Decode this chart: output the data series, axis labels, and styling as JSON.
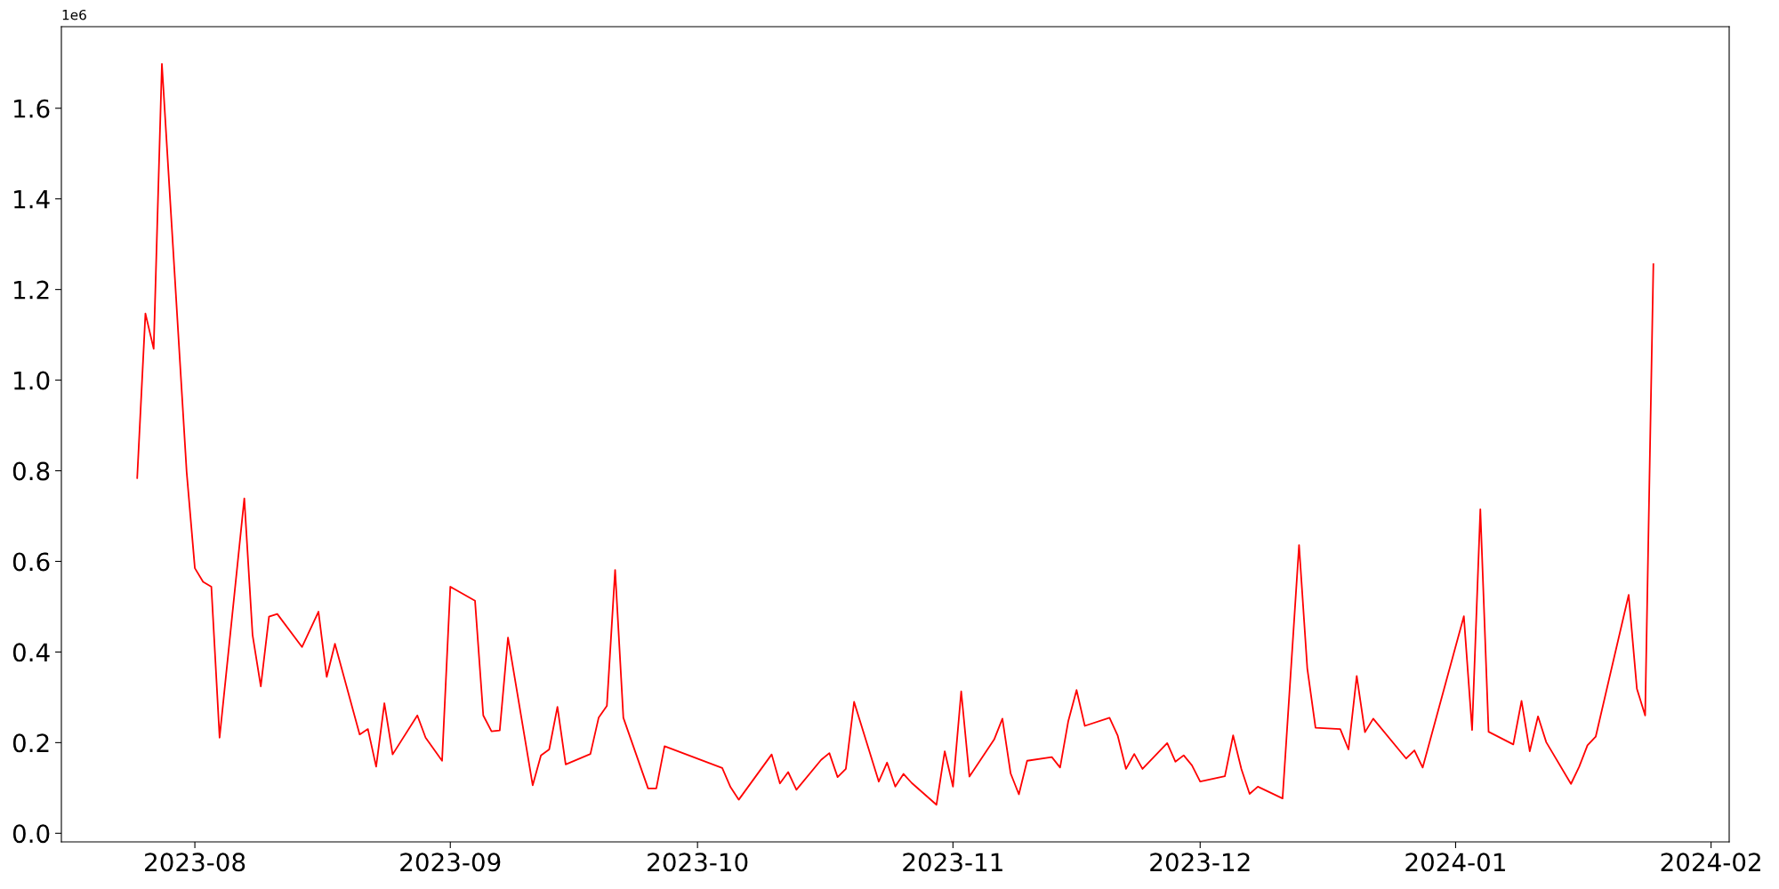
{
  "chart_data": {
    "type": "line",
    "x": [
      "2023-07-25",
      "2023-07-26",
      "2023-07-27",
      "2023-07-28",
      "2023-07-31",
      "2023-08-01",
      "2023-08-02",
      "2023-08-03",
      "2023-08-04",
      "2023-08-07",
      "2023-08-08",
      "2023-08-09",
      "2023-08-10",
      "2023-08-11",
      "2023-08-14",
      "2023-08-16",
      "2023-08-17",
      "2023-08-18",
      "2023-08-21",
      "2023-08-22",
      "2023-08-23",
      "2023-08-24",
      "2023-08-25",
      "2023-08-28",
      "2023-08-29",
      "2023-08-31",
      "2023-09-01",
      "2023-09-04",
      "2023-09-05",
      "2023-09-06",
      "2023-09-07",
      "2023-09-08",
      "2023-09-11",
      "2023-09-12",
      "2023-09-13",
      "2023-09-14",
      "2023-09-15",
      "2023-09-18",
      "2023-09-19",
      "2023-09-20",
      "2023-09-21",
      "2023-09-22",
      "2023-09-25",
      "2023-09-26",
      "2023-09-27",
      "2023-10-04",
      "2023-10-05",
      "2023-10-06",
      "2023-10-10",
      "2023-10-11",
      "2023-10-12",
      "2023-10-13",
      "2023-10-16",
      "2023-10-17",
      "2023-10-18",
      "2023-10-19",
      "2023-10-20",
      "2023-10-23",
      "2023-10-24",
      "2023-10-25",
      "2023-10-26",
      "2023-10-27",
      "2023-10-30",
      "2023-10-31",
      "2023-11-01",
      "2023-11-02",
      "2023-11-03",
      "2023-11-06",
      "2023-11-07",
      "2023-11-08",
      "2023-11-09",
      "2023-11-10",
      "2023-11-13",
      "2023-11-14",
      "2023-11-15",
      "2023-11-16",
      "2023-11-17",
      "2023-11-20",
      "2023-11-21",
      "2023-11-22",
      "2023-11-23",
      "2023-11-24",
      "2023-11-27",
      "2023-11-28",
      "2023-11-29",
      "2023-11-30",
      "2023-12-01",
      "2023-12-04",
      "2023-12-05",
      "2023-12-06",
      "2023-12-07",
      "2023-12-08",
      "2023-12-11",
      "2023-12-13",
      "2023-12-14",
      "2023-12-15",
      "2023-12-18",
      "2023-12-19",
      "2023-12-20",
      "2023-12-21",
      "2023-12-22",
      "2023-12-26",
      "2023-12-27",
      "2023-12-28",
      "2024-01-02",
      "2024-01-03",
      "2024-01-04",
      "2024-01-05",
      "2024-01-08",
      "2024-01-09",
      "2024-01-10",
      "2024-01-11",
      "2024-01-12",
      "2024-01-15",
      "2024-01-16",
      "2024-01-17",
      "2024-01-18",
      "2024-01-22",
      "2024-01-23",
      "2024-01-24",
      "2024-01-25"
    ],
    "series": [
      {
        "color": "#ff0000",
        "values": [
          0.784,
          1.147,
          1.069,
          1.698,
          0.798,
          0.585,
          0.555,
          0.544,
          0.211,
          0.739,
          0.438,
          0.324,
          0.478,
          0.484,
          0.411,
          0.489,
          0.345,
          0.418,
          0.218,
          0.23,
          0.147,
          0.287,
          0.174,
          0.26,
          0.211,
          0.16,
          0.544,
          0.513,
          0.26,
          0.225,
          0.227,
          0.432,
          0.106,
          0.172,
          0.185,
          0.279,
          0.152,
          0.175,
          0.255,
          0.281,
          0.581,
          0.255,
          0.099,
          0.099,
          0.192,
          0.144,
          0.102,
          0.074,
          0.174,
          0.11,
          0.135,
          0.096,
          0.162,
          0.177,
          0.124,
          0.142,
          0.29,
          0.114,
          0.156,
          0.103,
          0.131,
          0.111,
          0.063,
          0.181,
          0.103,
          0.313,
          0.125,
          0.207,
          0.253,
          0.132,
          0.086,
          0.16,
          0.168,
          0.145,
          0.248,
          0.316,
          0.237,
          0.255,
          0.215,
          0.142,
          0.175,
          0.142,
          0.199,
          0.158,
          0.172,
          0.15,
          0.114,
          0.126,
          0.216,
          0.142,
          0.087,
          0.103,
          0.077,
          0.636,
          0.364,
          0.233,
          0.23,
          0.185,
          0.347,
          0.223,
          0.253,
          0.165,
          0.183,
          0.145,
          0.479,
          0.228,
          0.715,
          0.224,
          0.196,
          0.292,
          0.181,
          0.258,
          0.201,
          0.109,
          0.147,
          0.194,
          0.213,
          0.526,
          0.319,
          0.26,
          1.256
        ]
      }
    ],
    "xlim": [
      "2023-07-15T19:12",
      "2024-02-03T04:48"
    ],
    "xticks": [
      "2023-08",
      "2023-09",
      "2023-10",
      "2023-11",
      "2023-12",
      "2024-01",
      "2024-02"
    ],
    "ylim": [
      -0.019,
      1.78
    ],
    "yticks": [
      {
        "value": 0,
        "label": "0.0"
      },
      0.2,
      0.4,
      0.6,
      0.8,
      {
        "value": 1,
        "label": "1.0"
      },
      1.2,
      1.4,
      1.6
    ],
    "annotations": [
      "1e6"
    ],
    "grid": false,
    "marker": "none",
    "line_style": "solid"
  }
}
